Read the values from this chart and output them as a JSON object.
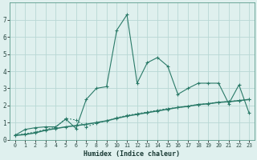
{
  "xlabel": "Humidex (Indice chaleur)",
  "x": [
    0,
    1,
    2,
    3,
    4,
    5,
    6,
    7,
    8,
    9,
    10,
    11,
    12,
    13,
    14,
    15,
    16,
    17,
    18,
    19,
    20,
    21,
    22,
    23
  ],
  "line1": [
    0.25,
    0.6,
    0.7,
    0.75,
    0.75,
    1.2,
    0.65,
    2.35,
    3.0,
    3.1,
    6.4,
    7.3,
    3.3,
    4.5,
    4.8,
    4.3,
    2.65,
    3.0,
    3.3,
    3.3,
    3.3,
    2.1,
    3.2,
    1.55
  ],
  "line2": [
    0.25,
    0.3,
    0.4,
    0.55,
    0.65,
    0.75,
    0.82,
    0.9,
    1.0,
    1.1,
    1.25,
    1.38,
    1.48,
    1.58,
    1.68,
    1.78,
    1.88,
    1.95,
    2.05,
    2.1,
    2.18,
    2.22,
    2.28,
    2.35
  ],
  "line3": [
    0.25,
    0.35,
    0.45,
    0.6,
    0.72,
    1.25,
    1.15,
    0.75,
    0.95,
    1.1,
    1.28,
    1.42,
    1.52,
    1.62,
    1.72,
    1.82,
    1.88,
    1.96,
    2.06,
    2.11,
    2.19,
    2.23,
    2.29,
    2.36
  ],
  "line_color": "#2a7a68",
  "bg_color": "#dff0ee",
  "grid_color": "#b8d8d4",
  "ylim": [
    0,
    8
  ],
  "xlim": [
    -0.5,
    23.5
  ],
  "yticks": [
    0,
    1,
    2,
    3,
    4,
    5,
    6,
    7
  ],
  "xticks": [
    0,
    1,
    2,
    3,
    4,
    5,
    6,
    7,
    8,
    9,
    10,
    11,
    12,
    13,
    14,
    15,
    16,
    17,
    18,
    19,
    20,
    21,
    22,
    23
  ]
}
